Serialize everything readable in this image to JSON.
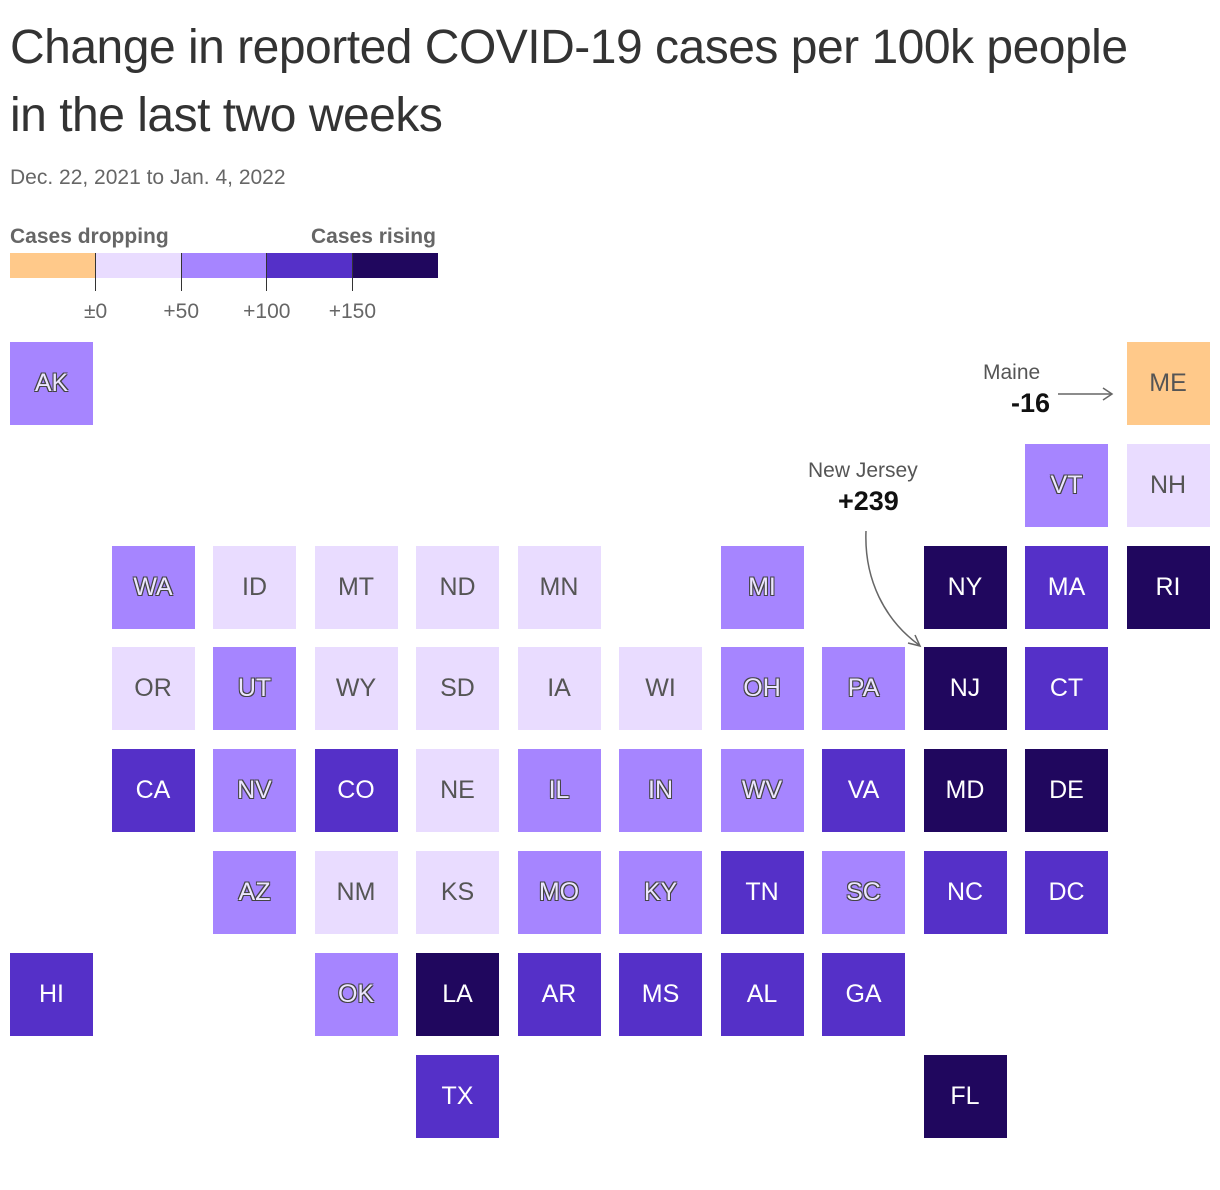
{
  "title": "Change in reported COVID-19 cases per 100k people in the last two weeks",
  "subtitle": "Dec. 22, 2021 to Jan. 4, 2022",
  "legend": {
    "low_label": "Cases dropping",
    "high_label": "Cases rising",
    "colors": [
      "#ffc98a",
      "#e9dcff",
      "#a685ff",
      "#5530c8",
      "#20075e"
    ],
    "tick_values": [
      0,
      50,
      100,
      150
    ],
    "tick_labels": [
      "±0",
      "+50",
      "+100",
      "+150"
    ]
  },
  "annotations": {
    "maine": {
      "name": "Maine",
      "value": "-16"
    },
    "new_jersey": {
      "name": "New Jersey",
      "value": "+239"
    }
  },
  "states": [
    {
      "abbr": "AK",
      "col": 0,
      "row": 0,
      "bin": 2
    },
    {
      "abbr": "ME",
      "col": 11,
      "row": 0,
      "bin": 0
    },
    {
      "abbr": "VT",
      "col": 10,
      "row": 1,
      "bin": 2
    },
    {
      "abbr": "NH",
      "col": 11,
      "row": 1,
      "bin": 1
    },
    {
      "abbr": "WA",
      "col": 1,
      "row": 2,
      "bin": 2
    },
    {
      "abbr": "ID",
      "col": 2,
      "row": 2,
      "bin": 1
    },
    {
      "abbr": "MT",
      "col": 3,
      "row": 2,
      "bin": 1
    },
    {
      "abbr": "ND",
      "col": 4,
      "row": 2,
      "bin": 1
    },
    {
      "abbr": "MN",
      "col": 5,
      "row": 2,
      "bin": 1
    },
    {
      "abbr": "MI",
      "col": 7,
      "row": 2,
      "bin": 2
    },
    {
      "abbr": "NY",
      "col": 9,
      "row": 2,
      "bin": 4
    },
    {
      "abbr": "MA",
      "col": 10,
      "row": 2,
      "bin": 3
    },
    {
      "abbr": "RI",
      "col": 11,
      "row": 2,
      "bin": 4
    },
    {
      "abbr": "OR",
      "col": 1,
      "row": 3,
      "bin": 1
    },
    {
      "abbr": "UT",
      "col": 2,
      "row": 3,
      "bin": 2
    },
    {
      "abbr": "WY",
      "col": 3,
      "row": 3,
      "bin": 1
    },
    {
      "abbr": "SD",
      "col": 4,
      "row": 3,
      "bin": 1
    },
    {
      "abbr": "IA",
      "col": 5,
      "row": 3,
      "bin": 1
    },
    {
      "abbr": "WI",
      "col": 6,
      "row": 3,
      "bin": 1
    },
    {
      "abbr": "OH",
      "col": 7,
      "row": 3,
      "bin": 2
    },
    {
      "abbr": "PA",
      "col": 8,
      "row": 3,
      "bin": 2
    },
    {
      "abbr": "NJ",
      "col": 9,
      "row": 3,
      "bin": 4
    },
    {
      "abbr": "CT",
      "col": 10,
      "row": 3,
      "bin": 3
    },
    {
      "abbr": "CA",
      "col": 1,
      "row": 4,
      "bin": 3
    },
    {
      "abbr": "NV",
      "col": 2,
      "row": 4,
      "bin": 2
    },
    {
      "abbr": "CO",
      "col": 3,
      "row": 4,
      "bin": 3
    },
    {
      "abbr": "NE",
      "col": 4,
      "row": 4,
      "bin": 1
    },
    {
      "abbr": "IL",
      "col": 5,
      "row": 4,
      "bin": 2
    },
    {
      "abbr": "IN",
      "col": 6,
      "row": 4,
      "bin": 2
    },
    {
      "abbr": "WV",
      "col": 7,
      "row": 4,
      "bin": 2
    },
    {
      "abbr": "VA",
      "col": 8,
      "row": 4,
      "bin": 3
    },
    {
      "abbr": "MD",
      "col": 9,
      "row": 4,
      "bin": 4
    },
    {
      "abbr": "DE",
      "col": 10,
      "row": 4,
      "bin": 4
    },
    {
      "abbr": "AZ",
      "col": 2,
      "row": 5,
      "bin": 2
    },
    {
      "abbr": "NM",
      "col": 3,
      "row": 5,
      "bin": 1
    },
    {
      "abbr": "KS",
      "col": 4,
      "row": 5,
      "bin": 1
    },
    {
      "abbr": "MO",
      "col": 5,
      "row": 5,
      "bin": 2
    },
    {
      "abbr": "KY",
      "col": 6,
      "row": 5,
      "bin": 2
    },
    {
      "abbr": "TN",
      "col": 7,
      "row": 5,
      "bin": 3
    },
    {
      "abbr": "SC",
      "col": 8,
      "row": 5,
      "bin": 2
    },
    {
      "abbr": "NC",
      "col": 9,
      "row": 5,
      "bin": 3
    },
    {
      "abbr": "DC",
      "col": 10,
      "row": 5,
      "bin": 3
    },
    {
      "abbr": "HI",
      "col": 0,
      "row": 6,
      "bin": 3
    },
    {
      "abbr": "OK",
      "col": 3,
      "row": 6,
      "bin": 2
    },
    {
      "abbr": "LA",
      "col": 4,
      "row": 6,
      "bin": 4
    },
    {
      "abbr": "AR",
      "col": 5,
      "row": 6,
      "bin": 3
    },
    {
      "abbr": "MS",
      "col": 6,
      "row": 6,
      "bin": 3
    },
    {
      "abbr": "AL",
      "col": 7,
      "row": 6,
      "bin": 3
    },
    {
      "abbr": "GA",
      "col": 8,
      "row": 6,
      "bin": 3
    },
    {
      "abbr": "TX",
      "col": 4,
      "row": 7,
      "bin": 3
    },
    {
      "abbr": "FL",
      "col": 9,
      "row": 7,
      "bin": 4
    }
  ]
}
